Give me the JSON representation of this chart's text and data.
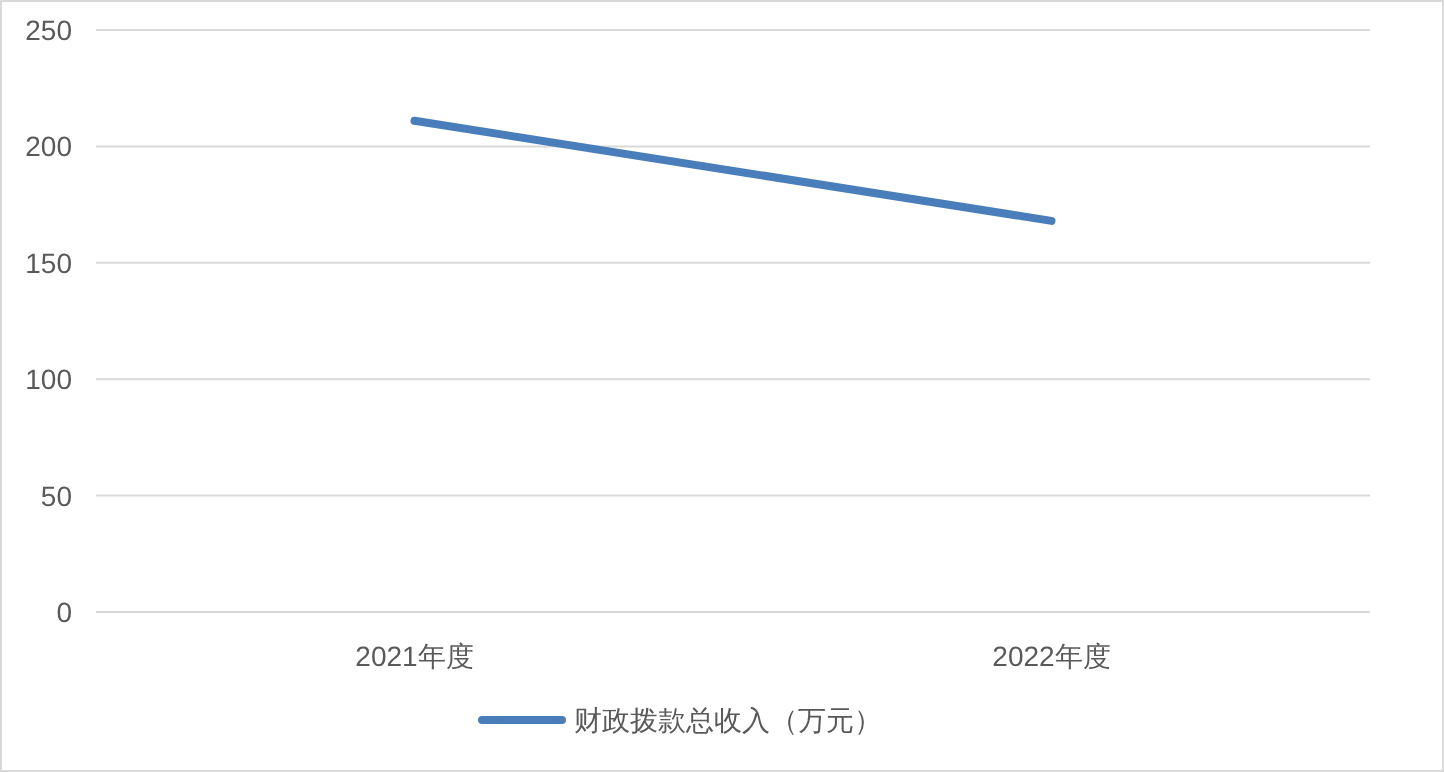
{
  "chart_data": {
    "type": "line",
    "categories": [
      "2021年度",
      "2022年度"
    ],
    "series": [
      {
        "name": "财政拨款总收入（万元）",
        "color": "#4a7ebb",
        "values": [
          211,
          168
        ]
      }
    ],
    "ylim": [
      0,
      250
    ],
    "yticks": [
      0,
      50,
      100,
      150,
      200,
      250
    ],
    "grid": "y",
    "legend": "bottom"
  }
}
